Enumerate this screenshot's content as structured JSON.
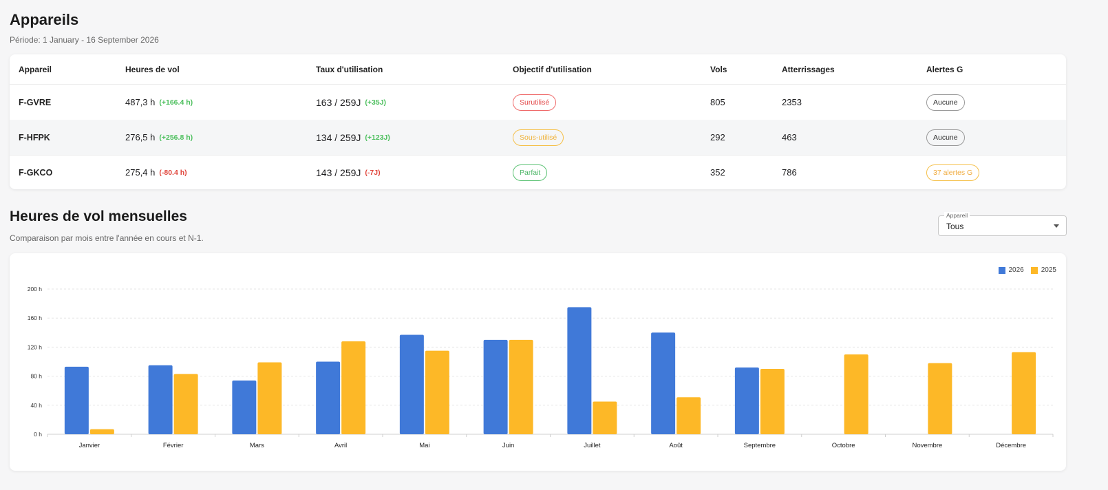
{
  "section1": {
    "title": "Appareils",
    "period": "Période: 1 January - 16 September 2026"
  },
  "table": {
    "headers": [
      "Appareil",
      "Heures de vol",
      "Taux d'utilisation",
      "Objectif d'utilisation",
      "Vols",
      "Atterrissages",
      "Alertes G"
    ],
    "rows": [
      {
        "reg": "F-GVRE",
        "hours": "487,3 h",
        "hours_delta": "(+166.4 h)",
        "util": "163 / 259J",
        "util_delta": "(+35J)",
        "objective": "Surutilisé",
        "flights": "805",
        "landings": "2353",
        "alerts": "Aucune"
      },
      {
        "reg": "F-HFPK",
        "hours": "276,5 h",
        "hours_delta": "(+256.8 h)",
        "util": "134 / 259J",
        "util_delta": "(+123J)",
        "objective": "Sous-utilisé",
        "flights": "292",
        "landings": "463",
        "alerts": "Aucune"
      },
      {
        "reg": "F-GKCO",
        "hours": "275,4 h",
        "hours_delta": "(-80.4 h)",
        "util": "143 / 259J",
        "util_delta": "(-7J)",
        "objective": "Parfait",
        "flights": "352",
        "landings": "786",
        "alerts": "37 alertes G"
      }
    ]
  },
  "section2": {
    "title": "Heures de vol mensuelles",
    "subtitle": "Comparaison par mois entre l'année en cours et N-1.",
    "select_label": "Appareil",
    "select_value": "Tous"
  },
  "colors": {
    "series_2026": "#4079d8",
    "series_2025": "#fdb827"
  },
  "chart_data": {
    "type": "bar",
    "categories": [
      "Janvier",
      "Février",
      "Mars",
      "Avril",
      "Mai",
      "Juin",
      "Juillet",
      "Août",
      "Septembre",
      "Octobre",
      "Novembre",
      "Décembre"
    ],
    "series": [
      {
        "name": "2026",
        "values": [
          93,
          95,
          74,
          100,
          137,
          130,
          175,
          140,
          92,
          0,
          0,
          0
        ]
      },
      {
        "name": "2025",
        "values": [
          7,
          83,
          99,
          128,
          115,
          130,
          45,
          51,
          90,
          110,
          98,
          113
        ]
      }
    ],
    "yticks": [
      "0 h",
      "40 h",
      "80 h",
      "120 h",
      "160 h",
      "200 h"
    ],
    "ylim": [
      0,
      200
    ],
    "grid": true,
    "legend_position": "top-right"
  }
}
